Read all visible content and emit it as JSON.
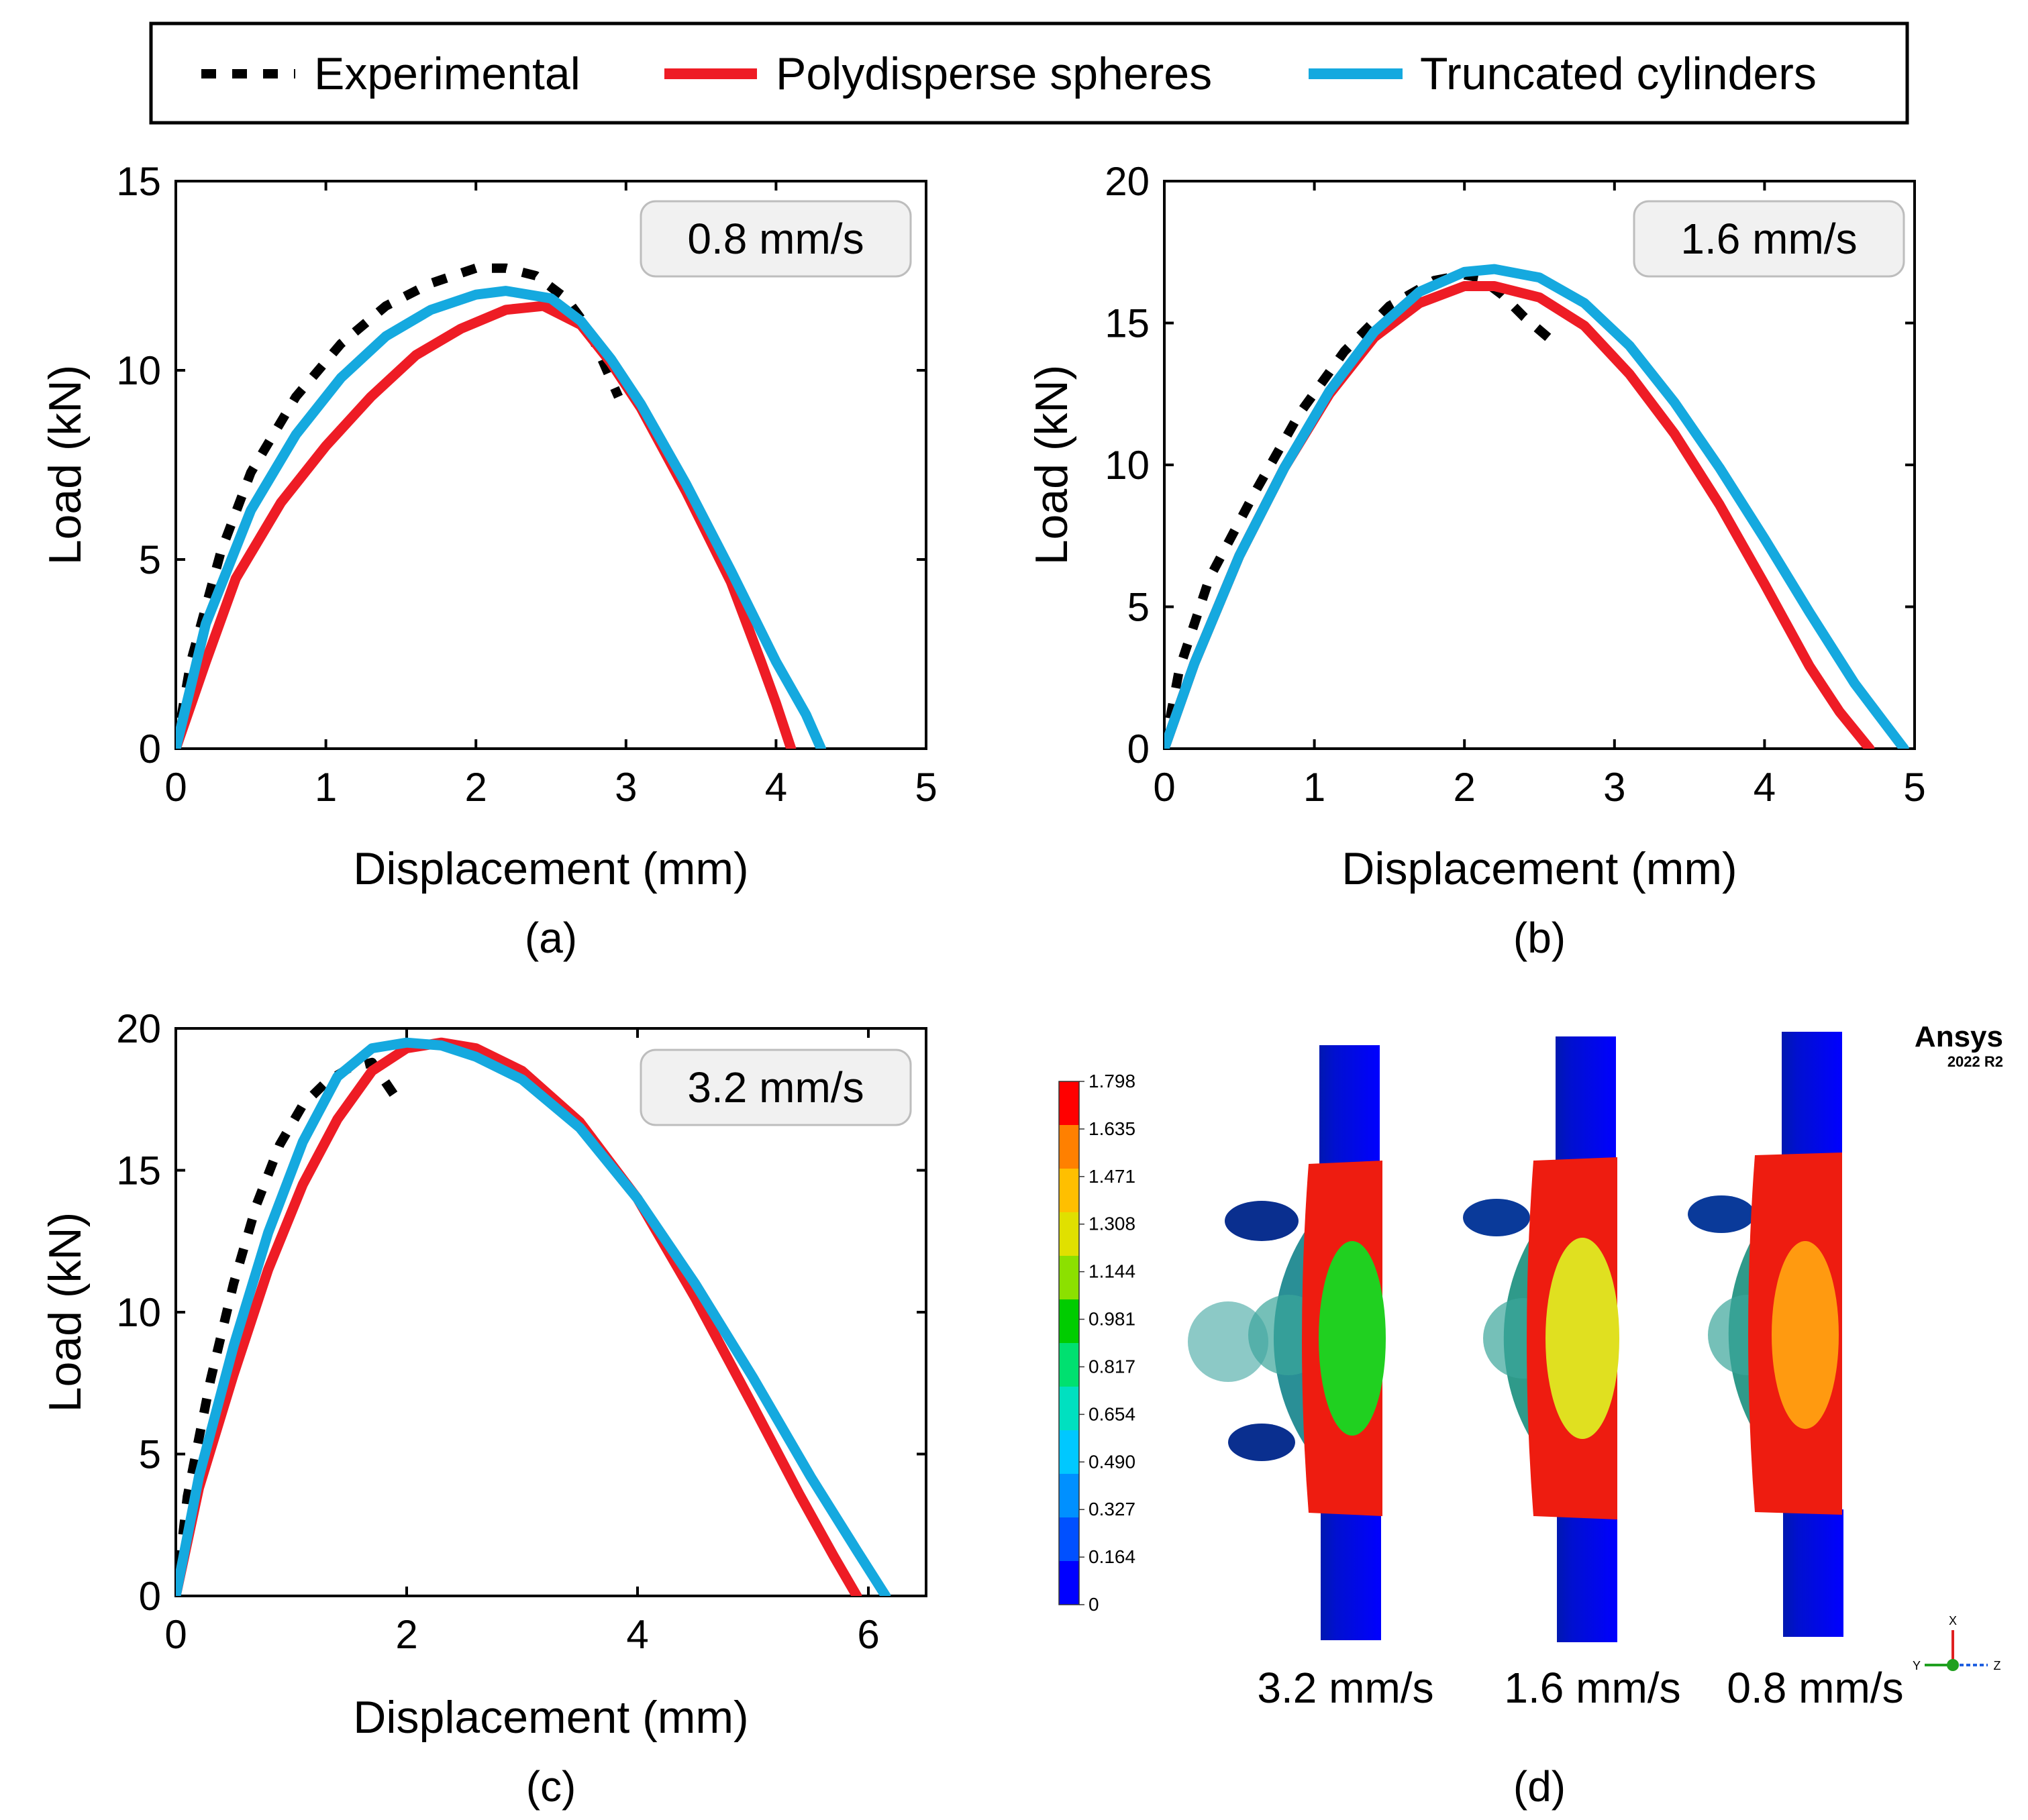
{
  "legend": {
    "entries": [
      {
        "label": "Experimental",
        "color": "#000000",
        "style": "dashed"
      },
      {
        "label": "Polydisperse spheres",
        "color": "#ee1c25",
        "style": "solid"
      },
      {
        "label": "Truncated cylinders",
        "color": "#15a9df",
        "style": "solid"
      }
    ]
  },
  "colorbar": {
    "labels": [
      "1.798",
      "1.635",
      "1.471",
      "1.308",
      "1.144",
      "0.981",
      "0.817",
      "0.654",
      "0.490",
      "0.327",
      "0.164",
      "0"
    ],
    "colors": [
      "#ff0000",
      "#ff8000",
      "#ffbf00",
      "#e0e000",
      "#8ce000",
      "#00cc00",
      "#00e070",
      "#00e0c0",
      "#00c8ff",
      "#0090ff",
      "#0050ff",
      "#0000ff"
    ]
  },
  "sim": {
    "labels": [
      "3.2 mm/s",
      "1.6 mm/s",
      "0.8 mm/s"
    ],
    "software": "Ansys",
    "version": "2022 R2",
    "axes": [
      "X",
      "Y",
      "Z"
    ]
  },
  "panel_d_label": "(d)",
  "chart_data": [
    {
      "type": "line",
      "panel": "(a)",
      "annotation": "0.8 mm/s",
      "xlabel": "Displacement (mm)",
      "ylabel": "Load (kN)",
      "xlim": [
        0,
        5
      ],
      "ylim": [
        0,
        15
      ],
      "xticks": [
        "0",
        "1",
        "2",
        "3",
        "4",
        "5"
      ],
      "yticks": [
        "0",
        "5",
        "10",
        "15"
      ],
      "series": [
        {
          "name": "Experimental",
          "x": [
            0,
            0.1,
            0.3,
            0.5,
            0.8,
            1.1,
            1.4,
            1.7,
            2.0,
            2.2,
            2.4,
            2.6,
            2.75,
            2.85,
            2.95
          ],
          "y": [
            0,
            2.3,
            5.2,
            7.3,
            9.3,
            10.7,
            11.7,
            12.3,
            12.7,
            12.7,
            12.5,
            11.9,
            11.1,
            10.2,
            9.3
          ]
        },
        {
          "name": "Polydisperse spheres",
          "x": [
            0,
            0.2,
            0.4,
            0.7,
            1.0,
            1.3,
            1.6,
            1.9,
            2.2,
            2.45,
            2.7,
            2.9,
            3.1,
            3.4,
            3.7,
            3.9,
            4.0,
            4.1
          ],
          "y": [
            0,
            2.3,
            4.5,
            6.5,
            8.0,
            9.3,
            10.4,
            11.1,
            11.6,
            11.7,
            11.2,
            10.2,
            9.0,
            6.8,
            4.4,
            2.3,
            1.2,
            0
          ]
        },
        {
          "name": "Truncated cylinders",
          "x": [
            0,
            0.2,
            0.5,
            0.8,
            1.1,
            1.4,
            1.7,
            2.0,
            2.2,
            2.5,
            2.7,
            2.9,
            3.1,
            3.4,
            3.7,
            4.0,
            4.2,
            4.3
          ],
          "y": [
            0,
            3.3,
            6.3,
            8.3,
            9.8,
            10.9,
            11.6,
            12.0,
            12.1,
            11.9,
            11.3,
            10.3,
            9.1,
            7.0,
            4.7,
            2.3,
            0.9,
            0
          ]
        }
      ]
    },
    {
      "type": "line",
      "panel": "(b)",
      "annotation": "1.6 mm/s",
      "xlabel": "Displacement (mm)",
      "ylabel": "Load (kN)",
      "xlim": [
        0,
        5
      ],
      "ylim": [
        0,
        20
      ],
      "xticks": [
        "0",
        "1",
        "2",
        "3",
        "4",
        "5"
      ],
      "yticks": [
        "0",
        "5",
        "10",
        "15",
        "20"
      ],
      "series": [
        {
          "name": "Experimental",
          "x": [
            0,
            0.1,
            0.3,
            0.6,
            0.9,
            1.2,
            1.5,
            1.8,
            2.0,
            2.1,
            2.25,
            2.4,
            2.6
          ],
          "y": [
            0,
            2.8,
            6.0,
            9.0,
            11.8,
            14.0,
            15.6,
            16.5,
            16.7,
            16.6,
            16.0,
            15.2,
            14.3
          ]
        },
        {
          "name": "Polydisperse spheres",
          "x": [
            0,
            0.2,
            0.5,
            0.8,
            1.1,
            1.4,
            1.7,
            2.0,
            2.2,
            2.5,
            2.8,
            3.1,
            3.4,
            3.7,
            4.0,
            4.3,
            4.5,
            4.7
          ],
          "y": [
            0,
            3.0,
            6.8,
            9.9,
            12.5,
            14.5,
            15.7,
            16.3,
            16.3,
            15.9,
            14.9,
            13.2,
            11.1,
            8.6,
            5.8,
            2.9,
            1.3,
            0
          ]
        },
        {
          "name": "Truncated cylinders",
          "x": [
            0,
            0.2,
            0.5,
            0.8,
            1.1,
            1.4,
            1.7,
            2.0,
            2.2,
            2.5,
            2.8,
            3.1,
            3.4,
            3.7,
            4.0,
            4.3,
            4.6,
            4.8,
            4.93
          ],
          "y": [
            0,
            3.0,
            6.8,
            9.9,
            12.6,
            14.7,
            16.1,
            16.8,
            16.9,
            16.6,
            15.7,
            14.2,
            12.2,
            9.9,
            7.4,
            4.8,
            2.3,
            0.9,
            0
          ]
        }
      ]
    },
    {
      "type": "line",
      "panel": "(c)",
      "annotation": "3.2 mm/s",
      "xlabel": "Displacement (mm)",
      "ylabel": "Load (kN)",
      "xlim": [
        0,
        6.5
      ],
      "ylim": [
        0,
        20
      ],
      "xticks": [
        "0",
        "2",
        "4",
        "6"
      ],
      "xtick_values": [
        0,
        2,
        4,
        6
      ],
      "yticks": [
        "0",
        "5",
        "10",
        "15",
        "20"
      ],
      "series": [
        {
          "name": "Experimental",
          "x": [
            0,
            0.1,
            0.3,
            0.5,
            0.7,
            0.9,
            1.1,
            1.3,
            1.5,
            1.7,
            1.8,
            1.95
          ],
          "y": [
            0,
            3.5,
            7.6,
            11.0,
            13.8,
            15.9,
            17.3,
            18.1,
            18.6,
            18.8,
            18.2,
            17.3
          ]
        },
        {
          "name": "Polydisperse spheres",
          "x": [
            0,
            0.2,
            0.5,
            0.8,
            1.1,
            1.4,
            1.7,
            2.0,
            2.3,
            2.6,
            3.0,
            3.5,
            4.0,
            4.5,
            5.0,
            5.4,
            5.7,
            5.9
          ],
          "y": [
            0,
            3.8,
            7.8,
            11.5,
            14.5,
            16.8,
            18.5,
            19.3,
            19.5,
            19.3,
            18.5,
            16.7,
            14.0,
            10.5,
            6.7,
            3.6,
            1.4,
            0
          ]
        },
        {
          "name": "Truncated cylinders",
          "x": [
            0,
            0.2,
            0.5,
            0.8,
            1.1,
            1.4,
            1.7,
            2.0,
            2.3,
            2.6,
            3.0,
            3.5,
            4.0,
            4.5,
            5.0,
            5.5,
            5.9,
            6.15
          ],
          "y": [
            0,
            4.2,
            8.8,
            12.8,
            16.0,
            18.3,
            19.3,
            19.5,
            19.4,
            19.0,
            18.2,
            16.5,
            14.0,
            11.0,
            7.7,
            4.2,
            1.6,
            0
          ]
        }
      ]
    }
  ]
}
